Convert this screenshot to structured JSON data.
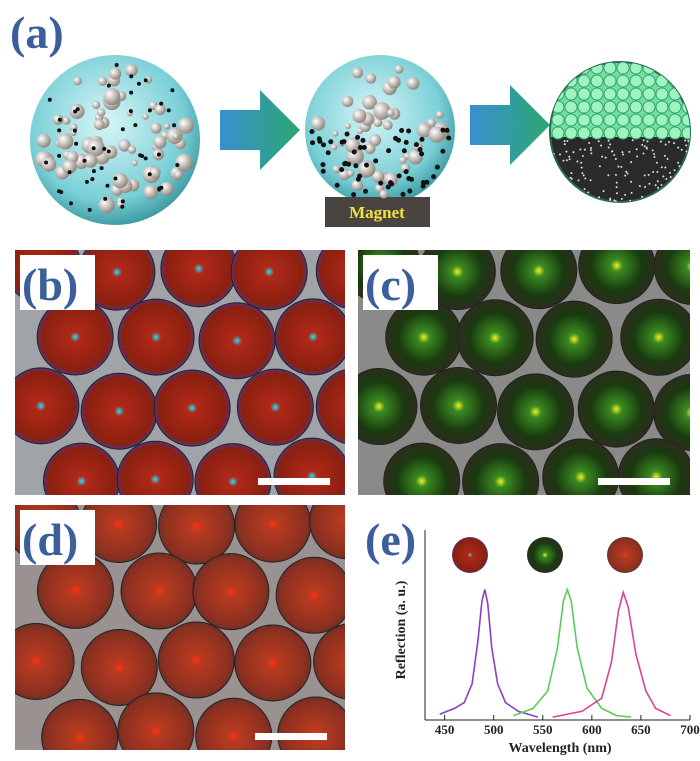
{
  "labels": [
    "(a)",
    "(b)",
    "(c)",
    "(d)",
    "(e)"
  ],
  "magnet": "Magnet",
  "chart_data": {
    "type": "line",
    "x_label": "Wavelength (nm)",
    "y_label": "Reflection (a. u.)",
    "xlim": [
      430,
      700
    ],
    "ylim": [
      0,
      1
    ],
    "xticks": [
      450,
      500,
      550,
      600,
      650,
      700
    ],
    "series": [
      {
        "color": "#8a3fc8",
        "x": [
          445,
          460,
          470,
          478,
          484,
          488,
          491,
          494,
          498,
          504,
          512,
          525,
          545
        ],
        "values": [
          0.04,
          0.08,
          0.12,
          0.25,
          0.55,
          0.82,
          0.9,
          0.8,
          0.5,
          0.25,
          0.12,
          0.06,
          0.02
        ]
      },
      {
        "color": "#5ccc5c",
        "x": [
          520,
          540,
          555,
          565,
          571,
          575,
          579,
          585,
          595,
          610,
          625,
          640
        ],
        "values": [
          0.03,
          0.08,
          0.2,
          0.5,
          0.82,
          0.9,
          0.82,
          0.5,
          0.22,
          0.08,
          0.03,
          0.02
        ]
      },
      {
        "color": "#e0409a",
        "x": [
          560,
          590,
          610,
          620,
          627,
          632,
          637,
          645,
          655,
          665,
          680
        ],
        "values": [
          0.02,
          0.06,
          0.15,
          0.4,
          0.75,
          0.88,
          0.78,
          0.45,
          0.2,
          0.08,
          0.03
        ]
      }
    ]
  }
}
